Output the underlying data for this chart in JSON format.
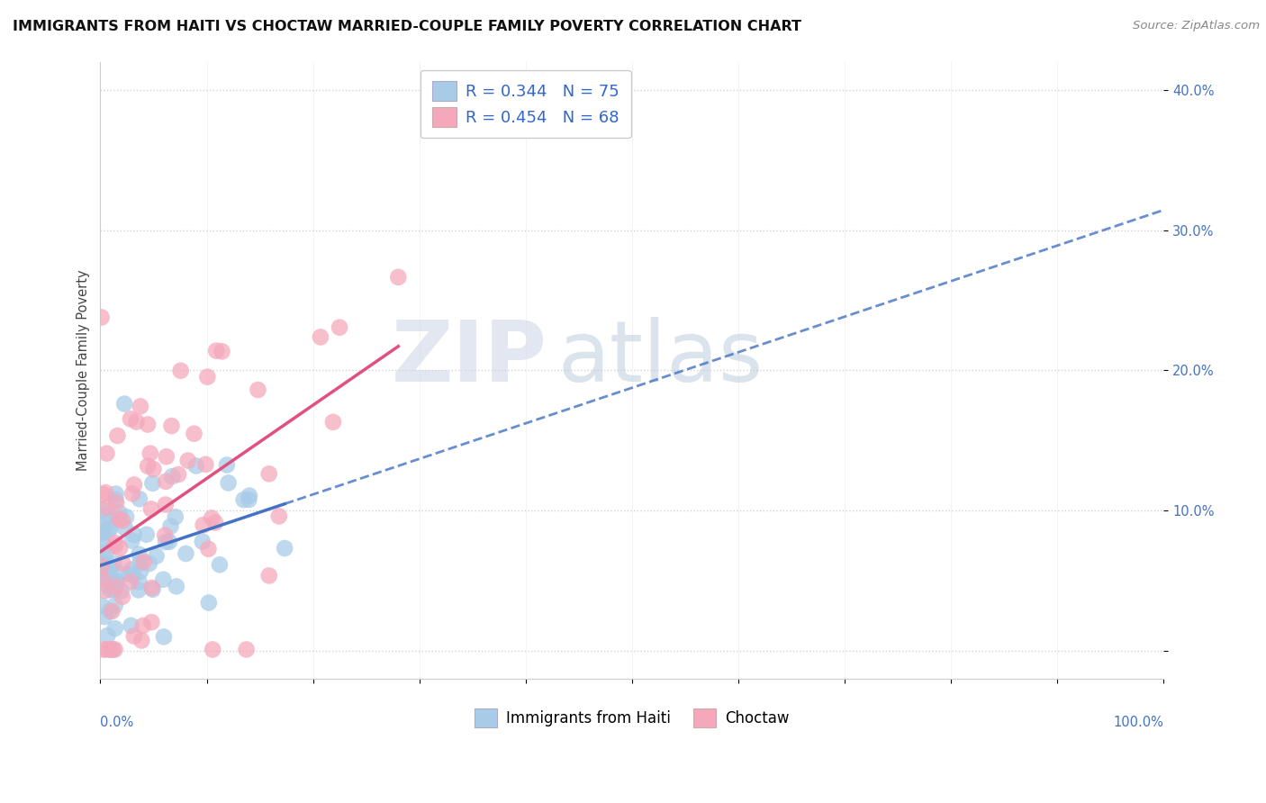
{
  "title": "IMMIGRANTS FROM HAITI VS CHOCTAW MARRIED-COUPLE FAMILY POVERTY CORRELATION CHART",
  "source": "Source: ZipAtlas.com",
  "ylabel": "Married-Couple Family Poverty",
  "r_haiti": 0.344,
  "n_haiti": 75,
  "r_choctaw": 0.454,
  "n_choctaw": 68,
  "haiti_color": "#a8cce8",
  "choctaw_color": "#f5a8bc",
  "haiti_line_color": "#4472c4",
  "choctaw_line_color": "#e05080",
  "watermark_zip": "ZIP",
  "watermark_atlas": "atlas",
  "background_color": "#ffffff",
  "xlim": [
    0.0,
    1.0
  ],
  "ylim": [
    -0.02,
    0.42
  ],
  "ytick_positions": [
    0.0,
    0.1,
    0.2,
    0.3,
    0.4
  ],
  "ytick_labels": [
    "",
    "10.0%",
    "20.0%",
    "30.0%",
    "40.0%"
  ],
  "legend_haiti_label": "Immigrants from Haiti",
  "legend_choctaw_label": "Choctaw",
  "haiti_seed": 42,
  "choctaw_seed": 99
}
